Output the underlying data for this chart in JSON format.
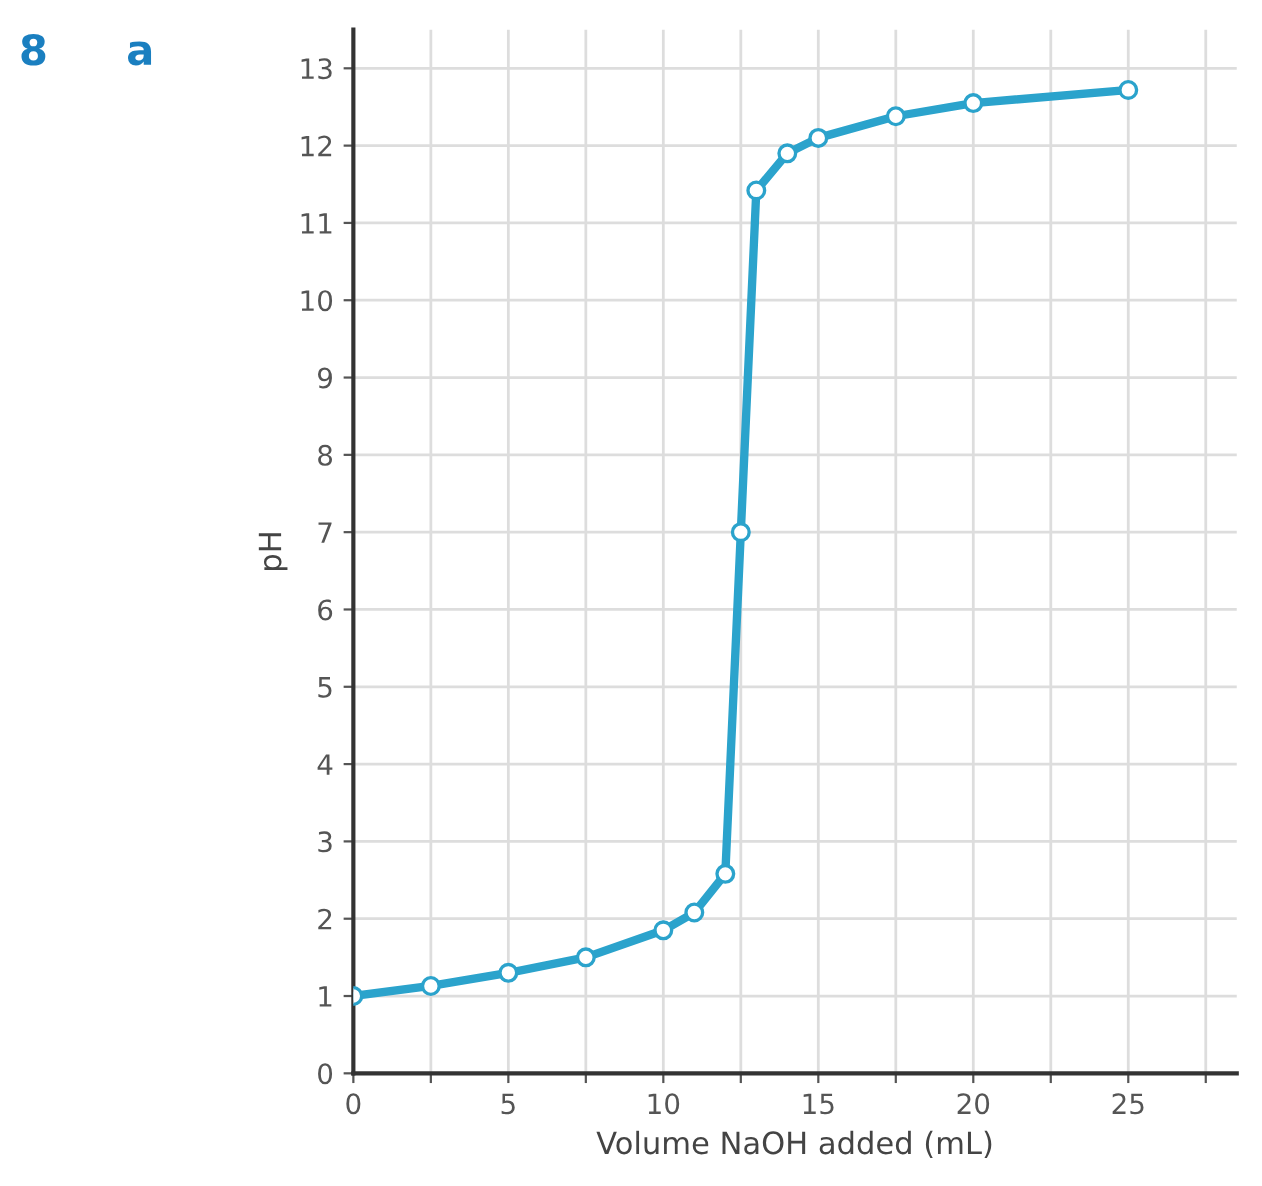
{
  "chart_data": {
    "type": "line",
    "xlabel": "Volume NaOH added (mL)",
    "ylabel": "pH",
    "annotations": [
      "8",
      "a"
    ],
    "x": [
      0,
      2.5,
      5,
      7.5,
      10,
      11,
      12,
      12.5,
      13,
      14,
      15,
      17.5,
      20,
      25
    ],
    "series": [
      {
        "color": "#2ba3cc",
        "values": [
          1.0,
          1.13,
          1.3,
          1.5,
          1.85,
          2.08,
          2.58,
          7.0,
          11.42,
          11.9,
          12.1,
          12.38,
          12.55,
          12.72
        ]
      }
    ],
    "xlim": [
      0,
      28.5
    ],
    "ylim": [
      0,
      13.5
    ],
    "xticks": [
      0,
      {
        "value": 2.5,
        "label": null
      },
      5,
      {
        "value": 7.5,
        "label": null
      },
      10,
      {
        "value": 12.5,
        "label": null
      },
      15,
      {
        "value": 17.5,
        "label": null
      },
      20,
      {
        "value": 22.5,
        "label": null
      },
      25,
      {
        "value": 27.5,
        "label": null
      }
    ],
    "yticks": [
      0,
      1,
      2,
      3,
      4,
      5,
      6,
      7,
      8,
      9,
      10,
      11,
      12,
      13
    ],
    "grid": true,
    "marker": "circle",
    "line_style": "solid"
  }
}
